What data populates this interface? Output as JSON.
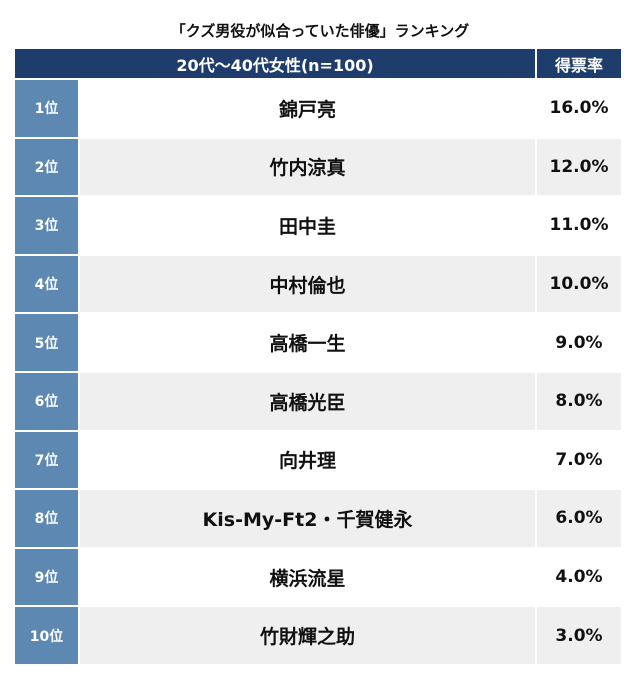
{
  "title": "「クズ男役が似合っていた俳優」ランキング",
  "table": {
    "header": [
      "20代〜40代女性(n=100)",
      "得票率"
    ],
    "rows": [
      [
        "1位",
        "錦戸亮",
        "16.0%"
      ],
      [
        "2位",
        "竹内涼真",
        "12.0%"
      ],
      [
        "3位",
        "田中圭",
        "11.0%"
      ],
      [
        "4位",
        "中村倫也",
        "10.0%"
      ],
      [
        "5位",
        "高橋一生",
        "9.0%"
      ],
      [
        "6位",
        "高橋光臣",
        "8.0%"
      ],
      [
        "7位",
        "向井理",
        "7.0%"
      ],
      [
        "8位",
        "Kis-My-Ft2・千賀健永",
        "6.0%"
      ],
      [
        "9位",
        "横浜流星",
        "4.0%"
      ],
      [
        "10位",
        "竹財輝之助",
        "3.0%"
      ]
    ]
  }
}
